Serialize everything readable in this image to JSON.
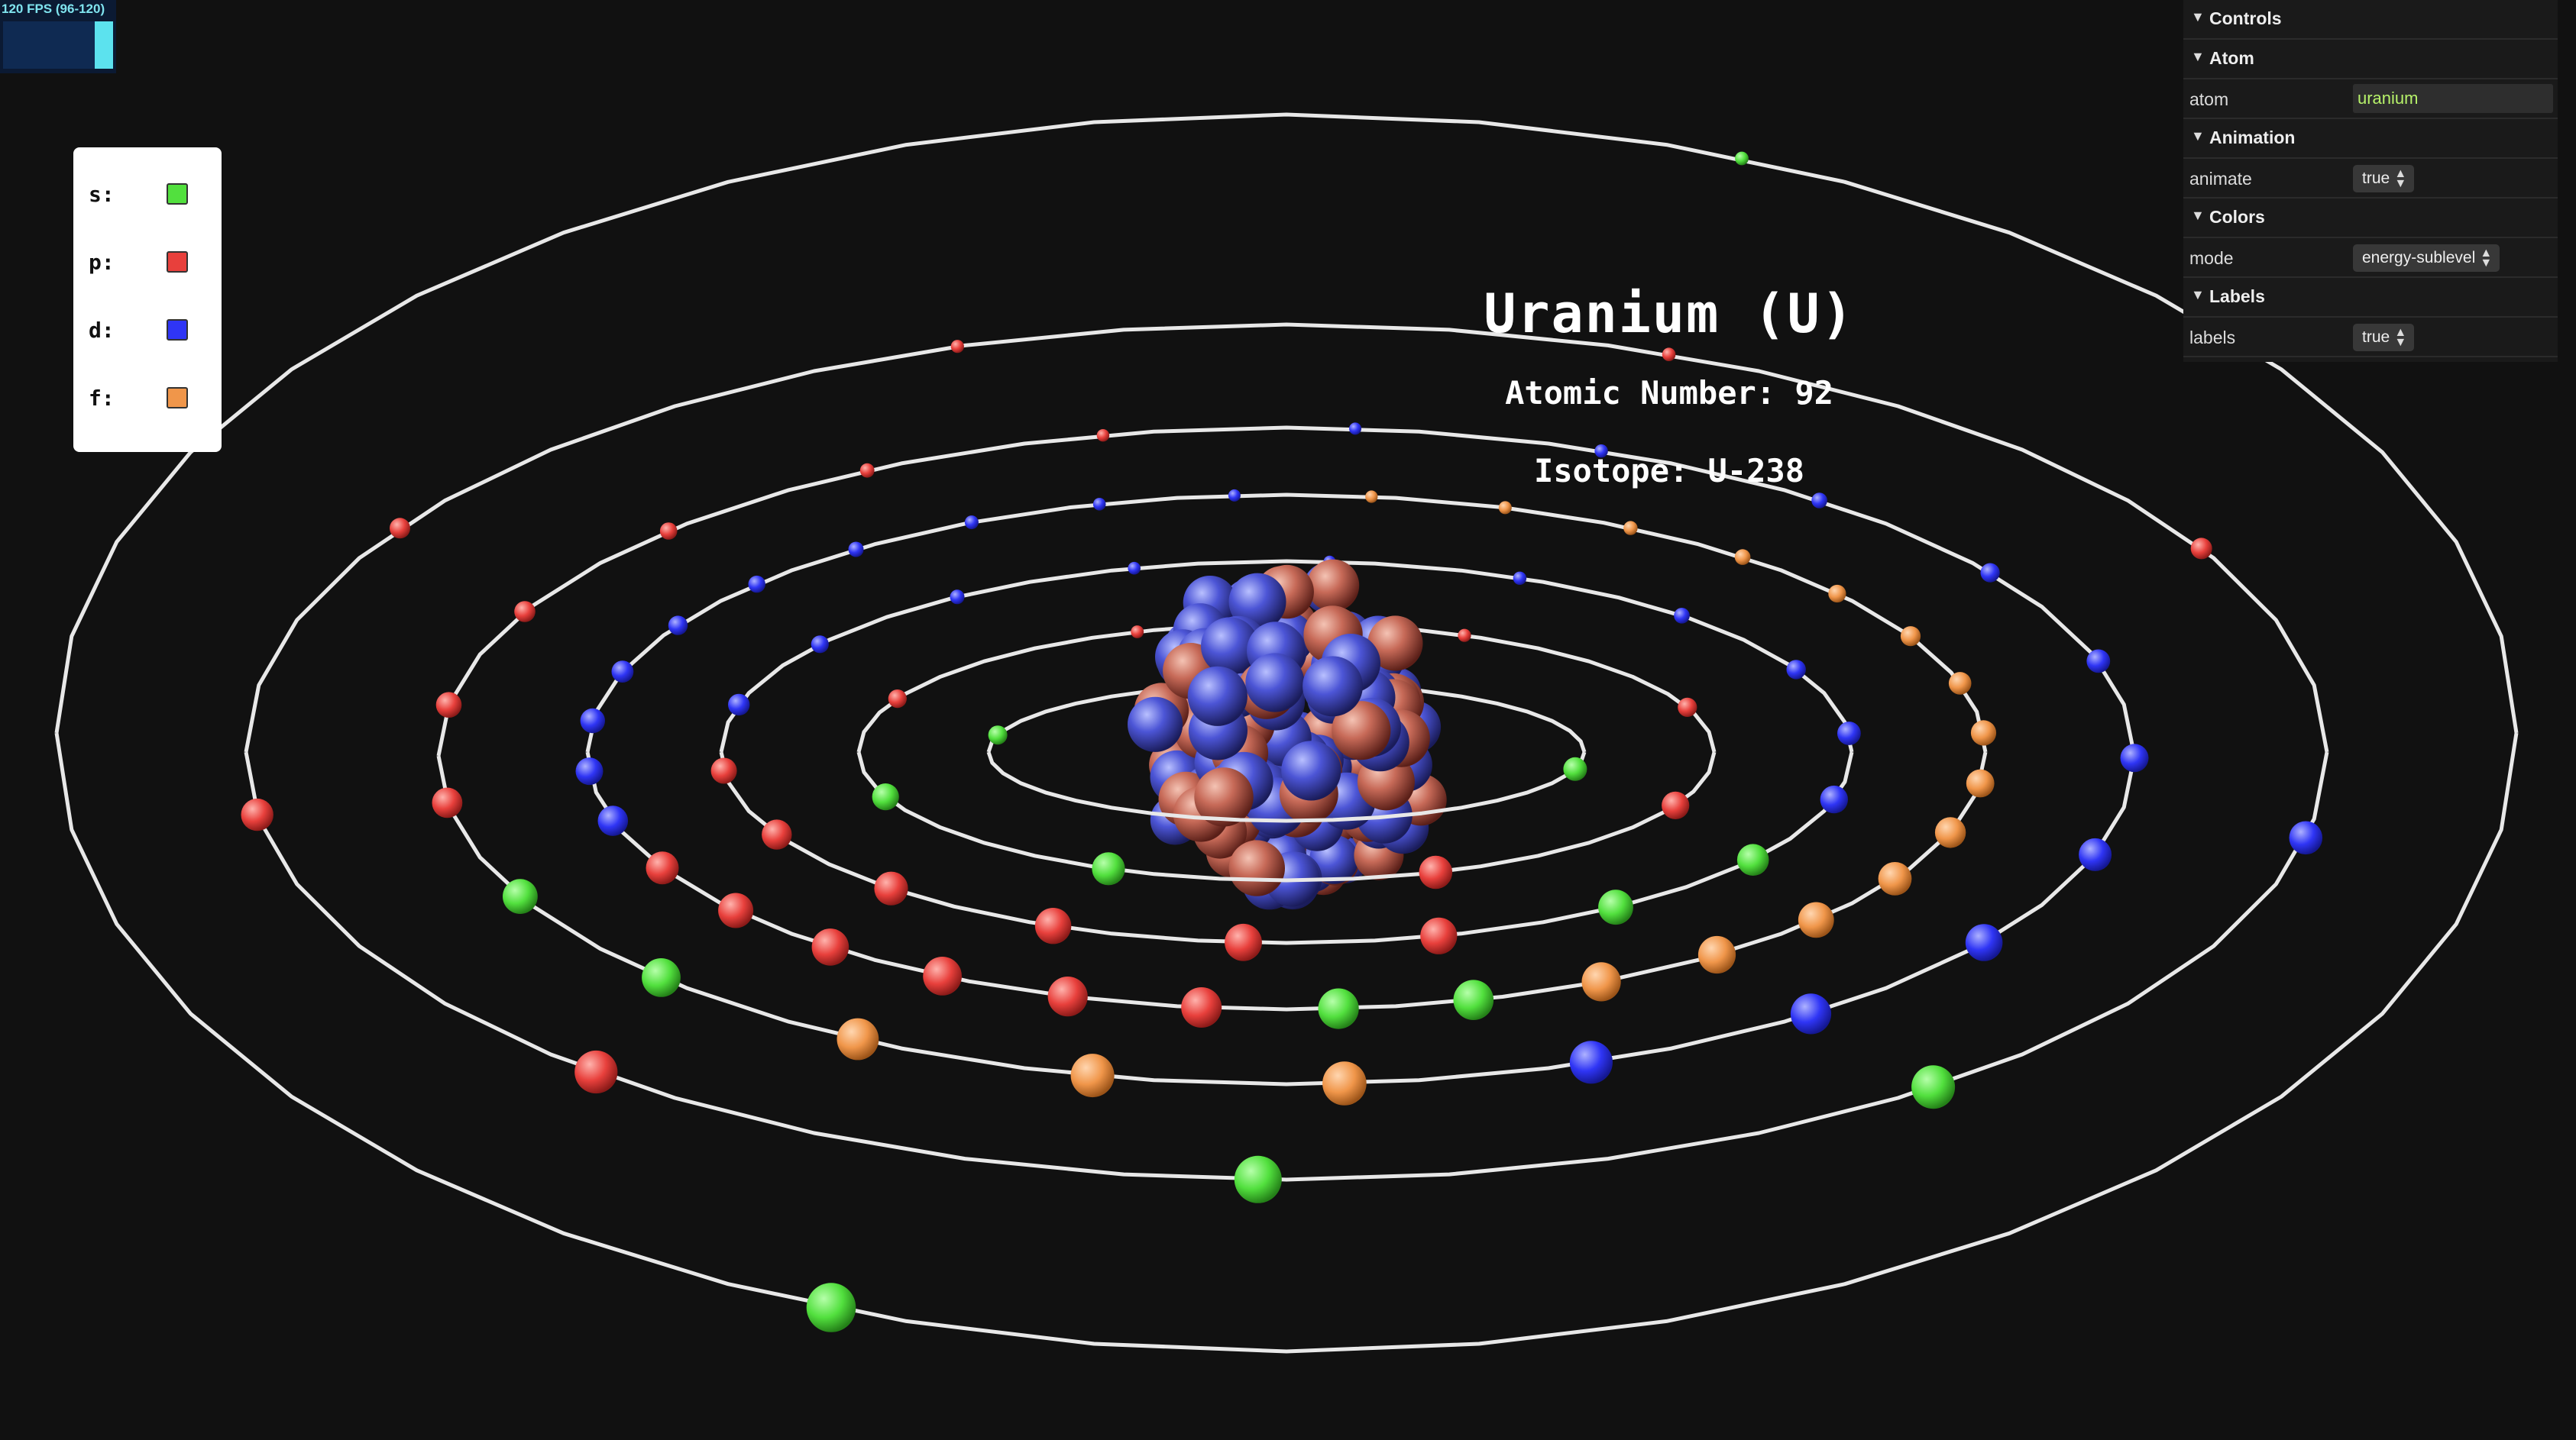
{
  "fps": {
    "text": "120 FPS (96-120)",
    "level": 1.0,
    "accent": "#5ce2ee"
  },
  "legend": {
    "items": [
      {
        "label": "s:",
        "color": "#52e03e"
      },
      {
        "label": "p:",
        "color": "#e8403c"
      },
      {
        "label": "d:",
        "color": "#2f35f5"
      },
      {
        "label": "f:",
        "color": "#f0964a"
      }
    ]
  },
  "title": {
    "name": "Uranium (U)",
    "atomic_number": "Atomic Number: 92",
    "isotope": "Isotope: U-238"
  },
  "controls": {
    "header": "Controls",
    "atom": {
      "section": "Atom",
      "label": "atom",
      "value": "uranium"
    },
    "animation": {
      "section": "Animation",
      "label": "animate",
      "value": "true"
    },
    "colors": {
      "section": "Colors",
      "label": "mode",
      "value": "energy-sublevel"
    },
    "labels": {
      "section": "Labels",
      "label": "labels",
      "value": "true"
    }
  },
  "scene": {
    "shell_count": 7,
    "electrons_per_shell": [
      2,
      8,
      18,
      32,
      21,
      9,
      2
    ],
    "nucleus": {
      "protons": 92,
      "neutrons": 146
    },
    "colors": {
      "orbit": "#e8e8e8",
      "proton": "#c96a5a",
      "neutron": "#4f57d8"
    }
  }
}
